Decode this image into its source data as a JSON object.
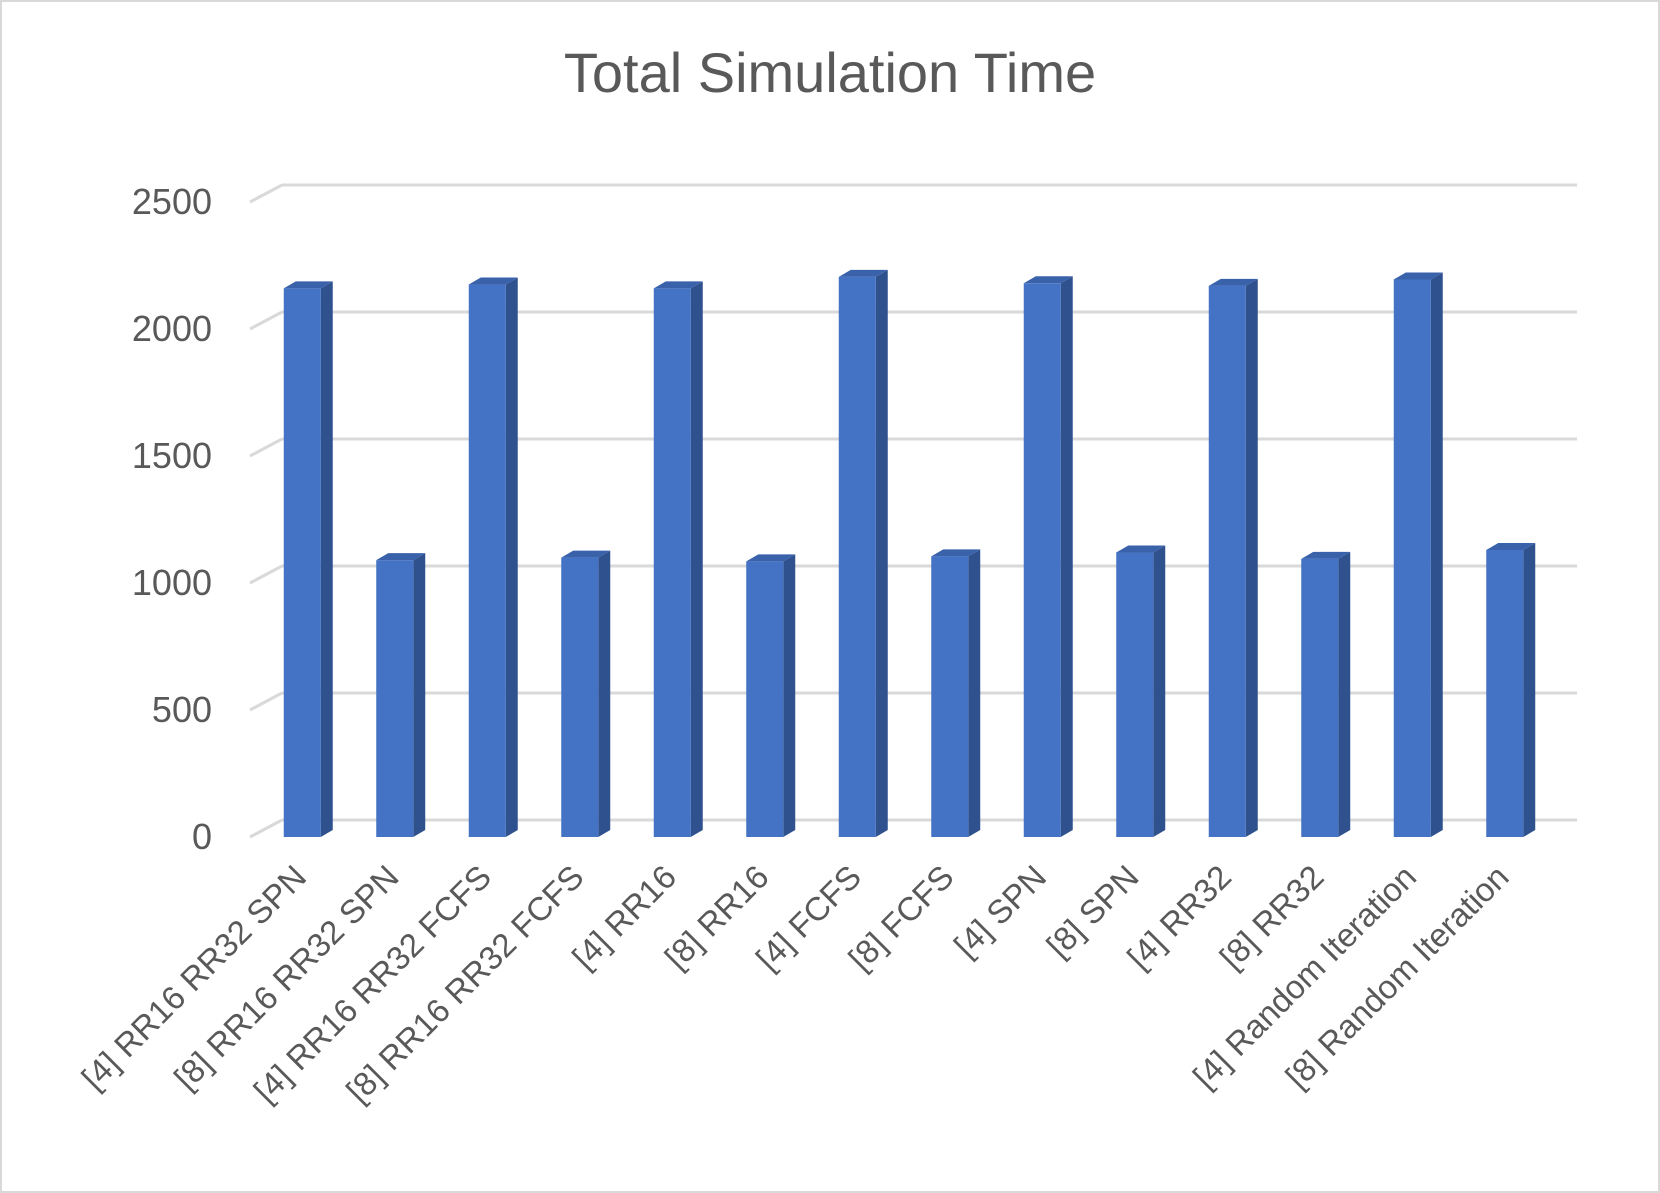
{
  "chart_data": {
    "type": "bar",
    "title": "Total Simulation Time",
    "xlabel": "",
    "ylabel": "",
    "ylim": [
      0,
      2500
    ],
    "yticks": [
      0,
      500,
      1000,
      1500,
      2000,
      2500
    ],
    "grid": true,
    "legend": "none",
    "bar_color": "#4472c4",
    "bar_side_color": "#2f528f",
    "bar_top_color": "#3a62ab",
    "categories": [
      "[4] RR16 RR32 SPN",
      "[8] RR16 RR32 SPN",
      "[4] RR16 RR32 FCFS",
      "[8] RR16 RR32 FCFS",
      "[4] RR16",
      "[8] RR16",
      "[4] FCFS",
      "[8] FCFS",
      "[4] SPN",
      "[8] SPN",
      "[4] RR32",
      "[8] RR32",
      "[4] Random Iteration",
      "[8] Random Iteration"
    ],
    "values": [
      2160,
      1090,
      2175,
      1100,
      2160,
      1085,
      2205,
      1105,
      2180,
      1120,
      2170,
      1095,
      2195,
      1130
    ]
  }
}
